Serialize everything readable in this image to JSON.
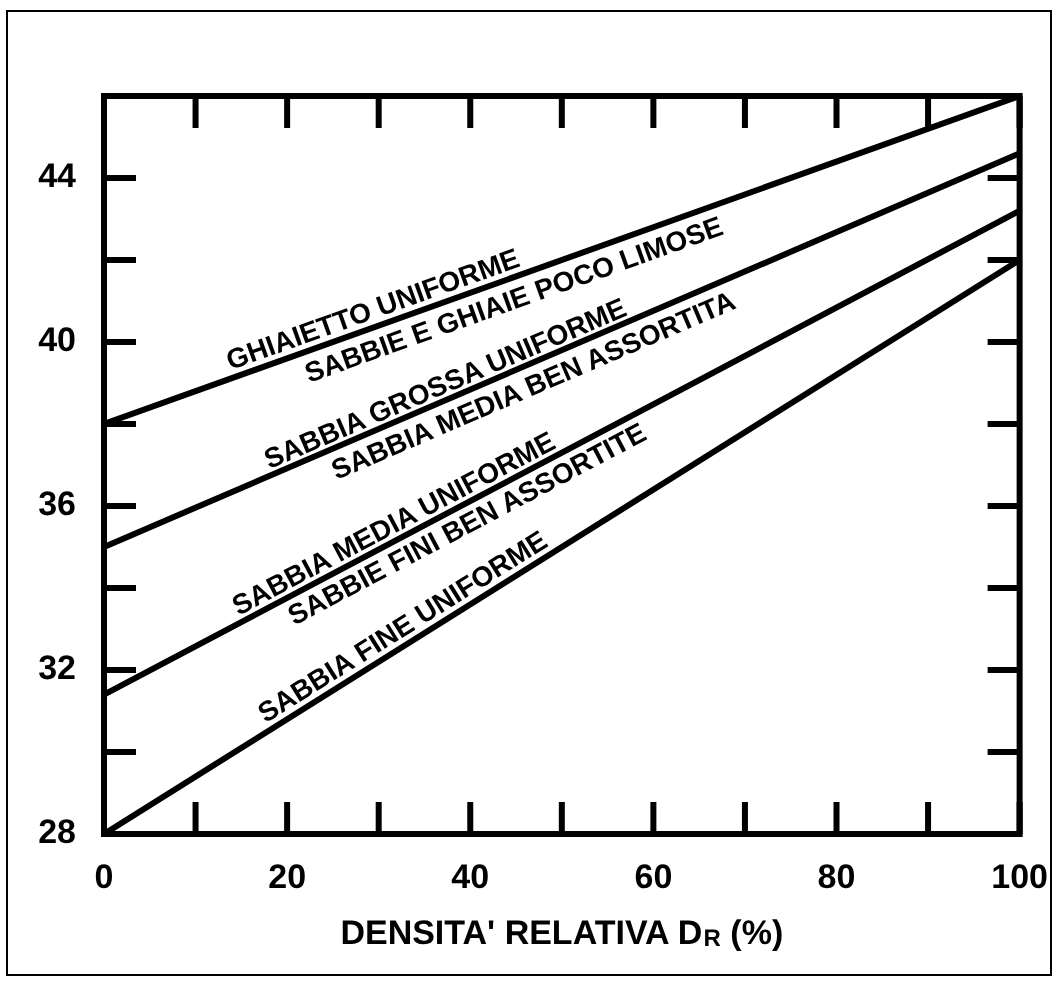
{
  "chart_data": {
    "type": "line",
    "xlabel": "DENSITA' RELATIVA D$_{R}$ (%)",
    "x": [
      0,
      100
    ],
    "series": [
      {
        "color": "#000000",
        "values": [
          38,
          46
        ]
      },
      {
        "color": "#000000",
        "values": [
          35,
          44.6
        ]
      },
      {
        "color": "#000000",
        "values": [
          31.4,
          43.2
        ]
      },
      {
        "color": "#000000",
        "values": [
          28,
          42
        ]
      }
    ],
    "xlim": [
      0,
      100
    ],
    "ylim": [
      28,
      46
    ],
    "xticks": [
      0,
      {
        "value": 10,
        "label": null
      },
      20,
      {
        "value": 30,
        "label": null
      },
      40,
      {
        "value": 50,
        "label": null
      },
      60,
      {
        "value": 70,
        "label": null
      },
      80,
      {
        "value": 90,
        "label": null
      },
      100
    ],
    "yticks": [
      28,
      {
        "value": 30,
        "label": null
      },
      32,
      {
        "value": 34,
        "label": null
      },
      36,
      {
        "value": 38,
        "label": null
      },
      40,
      {
        "value": 42,
        "label": null
      },
      44
    ],
    "marker": "none",
    "line_style": "solid",
    "legend": false,
    "grid": false,
    "annotations": [
      {
        "text": "GHIAIETTO UNIFORME",
        "x": 30,
        "y": 40.4
      },
      {
        "text": "SABBIE E GHIAIE POCO LIMOSE",
        "x": 44,
        "y": 41.5
      },
      {
        "text": "SABBIA GROSSA UNIFORME",
        "x": 38,
        "y": 38.6
      },
      {
        "text": "SABBIA MEDIA BEN ASSORTITA",
        "x": 46,
        "y": 39.4
      },
      {
        "text": "SABBIA MEDIA UNIFORME",
        "x": 32.5,
        "y": 35.2
      },
      {
        "text": "SABBIE FINI BEN ASSORTITE",
        "x": 38.6,
        "y": 36
      },
      {
        "text": "SABBIA FINE UNIFORME",
        "x": 33.6,
        "y": 32.7
      }
    ]
  }
}
